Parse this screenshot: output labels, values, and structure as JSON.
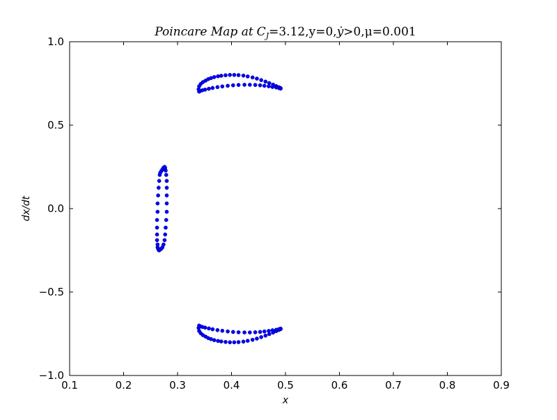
{
  "chart_data": {
    "type": "scatter",
    "title": "Poincare Map at C_J = 3.12, y = 0, ẏ > 0, μ = 0.001",
    "title_parts": {
      "words": "Poincare Map at",
      "c": "C",
      "sub": "J",
      "rest": "=3.12,y=0,",
      "ydot": "y",
      "tail": ">0,μ=0.001"
    },
    "xlabel": "x",
    "ylabel": "dx/dt",
    "xlim": [
      0.1,
      0.9
    ],
    "ylim": [
      -1.0,
      1.0
    ],
    "xticks": [
      "0.1",
      "0.2",
      "0.3",
      "0.4",
      "0.5",
      "0.6",
      "0.7",
      "0.8",
      "0.9"
    ],
    "yticks": [
      "1.0",
      "0.5",
      "0.0",
      "−0.5",
      "−1.0"
    ],
    "grid": false,
    "marker_color": "#0000ff",
    "series": [
      {
        "x": [
          0.267,
          0.266,
          0.265,
          0.264,
          0.263,
          0.263,
          0.262,
          0.262,
          0.262,
          0.262,
          0.263,
          0.263,
          0.264,
          0.265,
          0.266,
          0.268,
          0.27,
          0.272,
          0.274,
          0.276,
          0.277,
          0.278,
          0.279,
          0.28,
          0.28,
          0.28,
          0.28,
          0.28,
          0.279,
          0.278,
          0.277,
          0.276,
          0.274,
          0.272,
          0.27,
          0.268
        ],
        "y": [
          0.202,
          0.166,
          0.125,
          0.079,
          0.031,
          -0.019,
          -0.068,
          -0.114,
          -0.155,
          -0.189,
          -0.215,
          -0.232,
          -0.24,
          -0.248,
          -0.25,
          -0.245,
          -0.24,
          -0.232,
          -0.215,
          -0.189,
          -0.155,
          -0.114,
          -0.068,
          -0.019,
          0.031,
          0.079,
          0.125,
          0.166,
          0.202,
          0.228,
          0.244,
          0.25,
          0.245,
          0.235,
          0.225,
          0.215
        ]
      },
      {
        "x": [
          0.34,
          0.343,
          0.347,
          0.352,
          0.357,
          0.362,
          0.368,
          0.375,
          0.381,
          0.389,
          0.397,
          0.405,
          0.413,
          0.422,
          0.43,
          0.439,
          0.447,
          0.455,
          0.463,
          0.47,
          0.477,
          0.483,
          0.488,
          0.491,
          0.491,
          0.488,
          0.483,
          0.476,
          0.469,
          0.461,
          0.453,
          0.444,
          0.434,
          0.424,
          0.413,
          0.403,
          0.393,
          0.383,
          0.374,
          0.365,
          0.358,
          0.351,
          0.346,
          0.342,
          0.34,
          0.339
        ],
        "y": [
          0.733,
          0.747,
          0.758,
          0.767,
          0.776,
          0.782,
          0.788,
          0.793,
          0.796,
          0.799,
          0.801,
          0.801,
          0.8,
          0.797,
          0.792,
          0.786,
          0.779,
          0.77,
          0.761,
          0.752,
          0.743,
          0.734,
          0.727,
          0.722,
          0.719,
          0.722,
          0.726,
          0.729,
          0.733,
          0.736,
          0.739,
          0.741,
          0.742,
          0.742,
          0.741,
          0.739,
          0.736,
          0.732,
          0.728,
          0.723,
          0.718,
          0.713,
          0.709,
          0.705,
          0.701,
          0.715
        ]
      },
      {
        "x": [
          0.34,
          0.343,
          0.347,
          0.352,
          0.357,
          0.362,
          0.368,
          0.375,
          0.381,
          0.389,
          0.397,
          0.405,
          0.413,
          0.422,
          0.43,
          0.439,
          0.447,
          0.455,
          0.463,
          0.47,
          0.477,
          0.483,
          0.488,
          0.491,
          0.491,
          0.488,
          0.483,
          0.476,
          0.469,
          0.461,
          0.453,
          0.444,
          0.434,
          0.424,
          0.413,
          0.403,
          0.393,
          0.383,
          0.374,
          0.365,
          0.358,
          0.351,
          0.346,
          0.342,
          0.34,
          0.339
        ],
        "y": [
          -0.733,
          -0.747,
          -0.758,
          -0.767,
          -0.776,
          -0.782,
          -0.788,
          -0.793,
          -0.796,
          -0.799,
          -0.801,
          -0.801,
          -0.8,
          -0.797,
          -0.792,
          -0.786,
          -0.779,
          -0.77,
          -0.761,
          -0.752,
          -0.743,
          -0.734,
          -0.727,
          -0.722,
          -0.719,
          -0.722,
          -0.726,
          -0.729,
          -0.733,
          -0.736,
          -0.739,
          -0.741,
          -0.742,
          -0.742,
          -0.741,
          -0.739,
          -0.736,
          -0.732,
          -0.728,
          -0.723,
          -0.718,
          -0.713,
          -0.709,
          -0.705,
          -0.701,
          -0.715
        ]
      }
    ]
  }
}
